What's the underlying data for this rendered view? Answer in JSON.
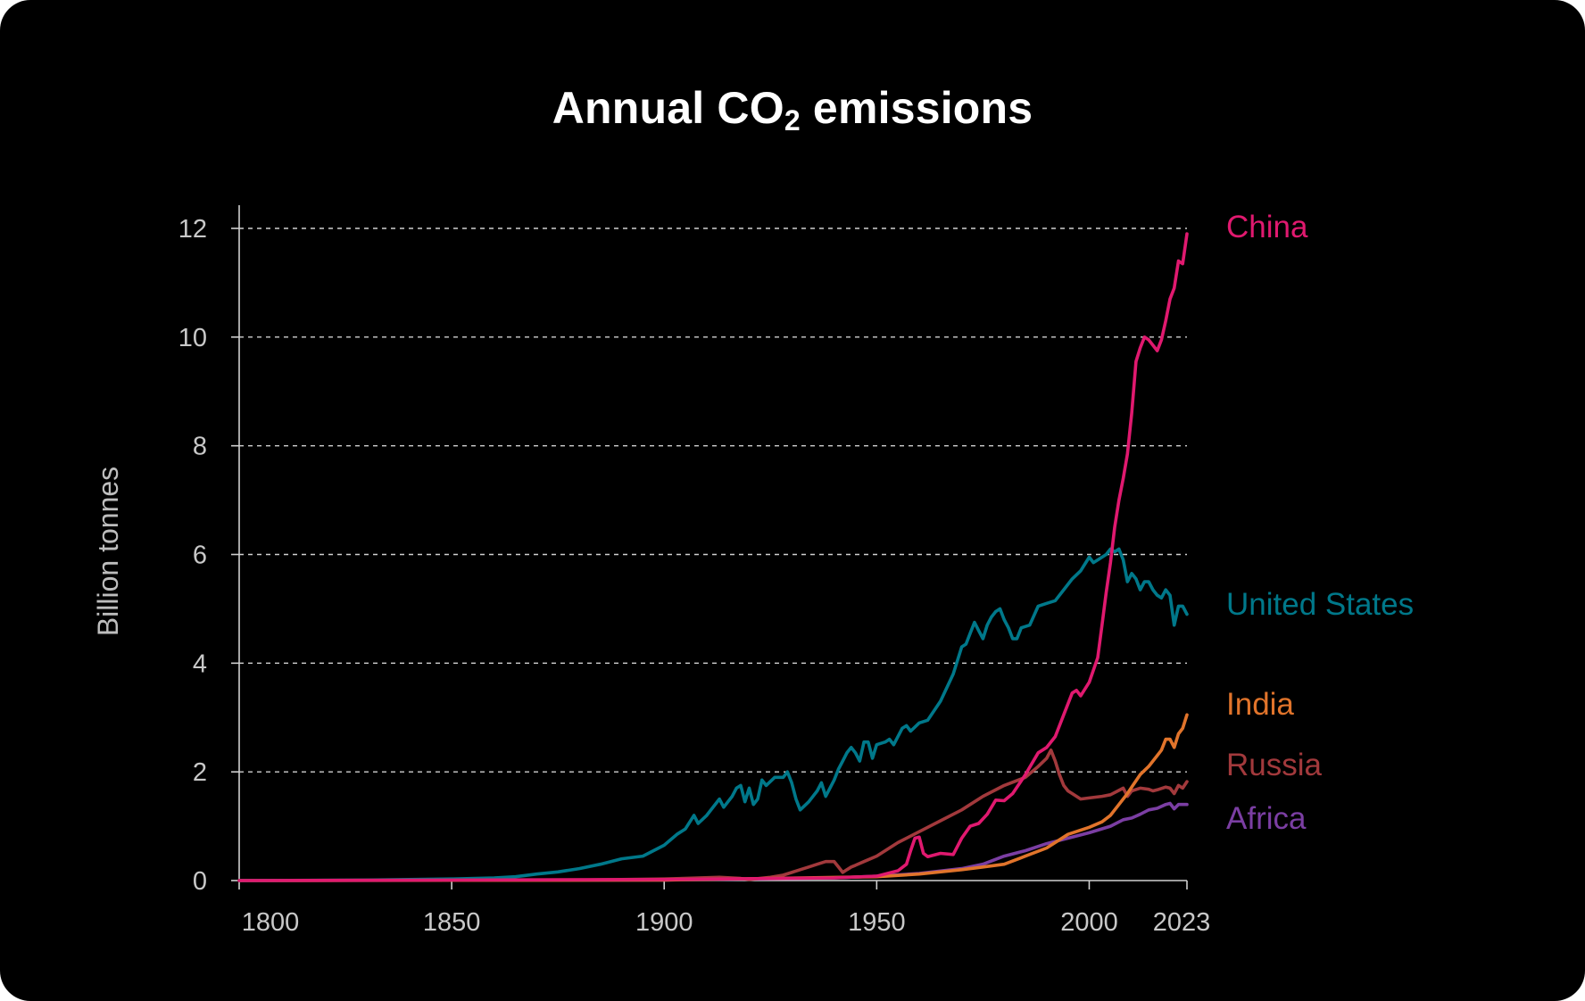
{
  "chart_data": {
    "type": "line",
    "title": "Annual CO",
    "title_subscript": "2",
    "title_suffix": " emissions",
    "ylabel": "Billion tonnes",
    "xlabel": "",
    "xlim": [
      1800,
      2023
    ],
    "ylim": [
      0,
      12
    ],
    "x_ticks": [
      {
        "value": 1800,
        "label": "1800"
      },
      {
        "value": 1850,
        "label": "1850"
      },
      {
        "value": 1900,
        "label": "1900"
      },
      {
        "value": 1950,
        "label": "1950"
      },
      {
        "value": 2000,
        "label": "2000"
      },
      {
        "value": 2023,
        "label": "2023"
      }
    ],
    "y_ticks": [
      {
        "value": 0,
        "label": "0"
      },
      {
        "value": 2,
        "label": "2"
      },
      {
        "value": 4,
        "label": "4"
      },
      {
        "value": 6,
        "label": "6"
      },
      {
        "value": 8,
        "label": "8"
      },
      {
        "value": 10,
        "label": "10"
      },
      {
        "value": 12,
        "label": "12"
      }
    ],
    "grid": "horizontal dashed",
    "legend": "inline labels at right end of lines",
    "background": "#000000",
    "series": [
      {
        "name": "China",
        "color": "#e0196f",
        "label_value": 11.9,
        "x": [
          1800,
          1900,
          1940,
          1950,
          1955,
          1957,
          1958,
          1959,
          1960,
          1961,
          1962,
          1965,
          1968,
          1970,
          1972,
          1974,
          1976,
          1978,
          1980,
          1982,
          1985,
          1988,
          1990,
          1992,
          1994,
          1996,
          1997,
          1998,
          2000,
          2002,
          2003,
          2004,
          2005,
          2006,
          2007,
          2008,
          2009,
          2010,
          2011,
          2012,
          2013,
          2014,
          2015,
          2016,
          2017,
          2018,
          2019,
          2020,
          2021,
          2022,
          2023
        ],
        "y": [
          0.0,
          0.02,
          0.05,
          0.08,
          0.18,
          0.3,
          0.55,
          0.78,
          0.8,
          0.5,
          0.44,
          0.5,
          0.48,
          0.78,
          1.0,
          1.05,
          1.22,
          1.48,
          1.47,
          1.6,
          1.95,
          2.35,
          2.45,
          2.65,
          3.05,
          3.45,
          3.5,
          3.4,
          3.65,
          4.1,
          4.7,
          5.3,
          5.85,
          6.5,
          7.0,
          7.4,
          7.85,
          8.6,
          9.55,
          9.8,
          10.0,
          9.95,
          9.85,
          9.75,
          9.95,
          10.3,
          10.7,
          10.9,
          11.4,
          11.35,
          11.9
        ]
      },
      {
        "name": "United States",
        "color": "#00788a",
        "label_value": 4.9,
        "x": [
          1800,
          1830,
          1850,
          1860,
          1865,
          1870,
          1875,
          1880,
          1885,
          1890,
          1895,
          1900,
          1903,
          1905,
          1907,
          1908,
          1910,
          1913,
          1914,
          1916,
          1917,
          1918,
          1919,
          1920,
          1921,
          1922,
          1923,
          1924,
          1926,
          1928,
          1929,
          1930,
          1931,
          1932,
          1934,
          1936,
          1937,
          1938,
          1940,
          1941,
          1942,
          1943,
          1944,
          1945,
          1946,
          1947,
          1948,
          1949,
          1950,
          1952,
          1953,
          1954,
          1956,
          1957,
          1958,
          1960,
          1962,
          1965,
          1968,
          1970,
          1971,
          1972,
          1973,
          1974,
          1975,
          1976,
          1977,
          1978,
          1979,
          1980,
          1981,
          1982,
          1983,
          1984,
          1986,
          1988,
          1990,
          1992,
          1994,
          1996,
          1998,
          2000,
          2001,
          2002,
          2004,
          2005,
          2006,
          2007,
          2008,
          2009,
          2010,
          2011,
          2012,
          2013,
          2014,
          2015,
          2016,
          2017,
          2018,
          2019,
          2020,
          2021,
          2022,
          2023
        ],
        "y": [
          0.0,
          0.01,
          0.03,
          0.05,
          0.07,
          0.12,
          0.16,
          0.22,
          0.3,
          0.4,
          0.45,
          0.65,
          0.85,
          0.95,
          1.2,
          1.05,
          1.2,
          1.5,
          1.35,
          1.55,
          1.7,
          1.75,
          1.45,
          1.7,
          1.4,
          1.5,
          1.85,
          1.75,
          1.9,
          1.9,
          2.0,
          1.8,
          1.5,
          1.3,
          1.45,
          1.65,
          1.8,
          1.55,
          1.85,
          2.05,
          2.2,
          2.35,
          2.45,
          2.35,
          2.2,
          2.55,
          2.55,
          2.25,
          2.5,
          2.55,
          2.6,
          2.5,
          2.8,
          2.85,
          2.75,
          2.9,
          2.95,
          3.3,
          3.8,
          4.3,
          4.35,
          4.55,
          4.75,
          4.6,
          4.45,
          4.7,
          4.85,
          4.95,
          5.0,
          4.8,
          4.65,
          4.45,
          4.45,
          4.65,
          4.7,
          5.05,
          5.1,
          5.15,
          5.35,
          5.55,
          5.7,
          5.95,
          5.85,
          5.9,
          6.0,
          6.1,
          6.05,
          6.1,
          5.9,
          5.5,
          5.65,
          5.55,
          5.35,
          5.5,
          5.5,
          5.35,
          5.25,
          5.2,
          5.35,
          5.25,
          4.7,
          5.05,
          5.05,
          4.9
        ]
      },
      {
        "name": "India",
        "color": "#e1742b",
        "label_value": 3.05,
        "x": [
          1800,
          1900,
          1950,
          1960,
          1970,
          1975,
          1980,
          1985,
          1990,
          1995,
          2000,
          2003,
          2005,
          2007,
          2009,
          2010,
          2012,
          2014,
          2015,
          2016,
          2017,
          2018,
          2019,
          2020,
          2021,
          2022,
          2023
        ],
        "y": [
          0.0,
          0.01,
          0.07,
          0.12,
          0.2,
          0.25,
          0.3,
          0.45,
          0.6,
          0.85,
          0.98,
          1.08,
          1.2,
          1.4,
          1.6,
          1.72,
          1.95,
          2.1,
          2.2,
          2.3,
          2.4,
          2.6,
          2.6,
          2.45,
          2.7,
          2.8,
          3.05
        ]
      },
      {
        "name": "Russia",
        "color": "#a2393c",
        "label_value": 1.82,
        "x": [
          1800,
          1880,
          1900,
          1913,
          1918,
          1920,
          1925,
          1928,
          1930,
          1932,
          1934,
          1936,
          1938,
          1940,
          1941,
          1942,
          1943,
          1944,
          1945,
          1947,
          1950,
          1955,
          1960,
          1965,
          1970,
          1975,
          1980,
          1985,
          1988,
          1990,
          1991,
          1992,
          1993,
          1994,
          1995,
          1996,
          1998,
          2000,
          2003,
          2005,
          2008,
          2009,
          2010,
          2012,
          2014,
          2015,
          2016,
          2018,
          2019,
          2020,
          2021,
          2022,
          2023
        ],
        "y": [
          0.0,
          0.01,
          0.03,
          0.06,
          0.04,
          0.02,
          0.06,
          0.1,
          0.15,
          0.2,
          0.25,
          0.3,
          0.35,
          0.35,
          0.25,
          0.15,
          0.2,
          0.25,
          0.28,
          0.35,
          0.45,
          0.7,
          0.9,
          1.1,
          1.3,
          1.55,
          1.75,
          1.9,
          2.1,
          2.25,
          2.4,
          2.2,
          1.95,
          1.75,
          1.65,
          1.6,
          1.5,
          1.52,
          1.55,
          1.58,
          1.7,
          1.55,
          1.65,
          1.7,
          1.68,
          1.65,
          1.67,
          1.72,
          1.7,
          1.6,
          1.75,
          1.7,
          1.82
        ]
      },
      {
        "name": "Africa",
        "color": "#7b3ea3",
        "label_value": 1.4,
        "x": [
          1800,
          1900,
          1940,
          1950,
          1960,
          1970,
          1975,
          1980,
          1985,
          1990,
          1995,
          2000,
          2005,
          2008,
          2010,
          2012,
          2014,
          2016,
          2018,
          2019,
          2020,
          2021,
          2022,
          2023
        ],
        "y": [
          0.0,
          0.01,
          0.05,
          0.08,
          0.13,
          0.22,
          0.3,
          0.45,
          0.55,
          0.68,
          0.78,
          0.88,
          1.0,
          1.12,
          1.15,
          1.22,
          1.3,
          1.33,
          1.4,
          1.42,
          1.32,
          1.4,
          1.4,
          1.4
        ]
      }
    ]
  }
}
